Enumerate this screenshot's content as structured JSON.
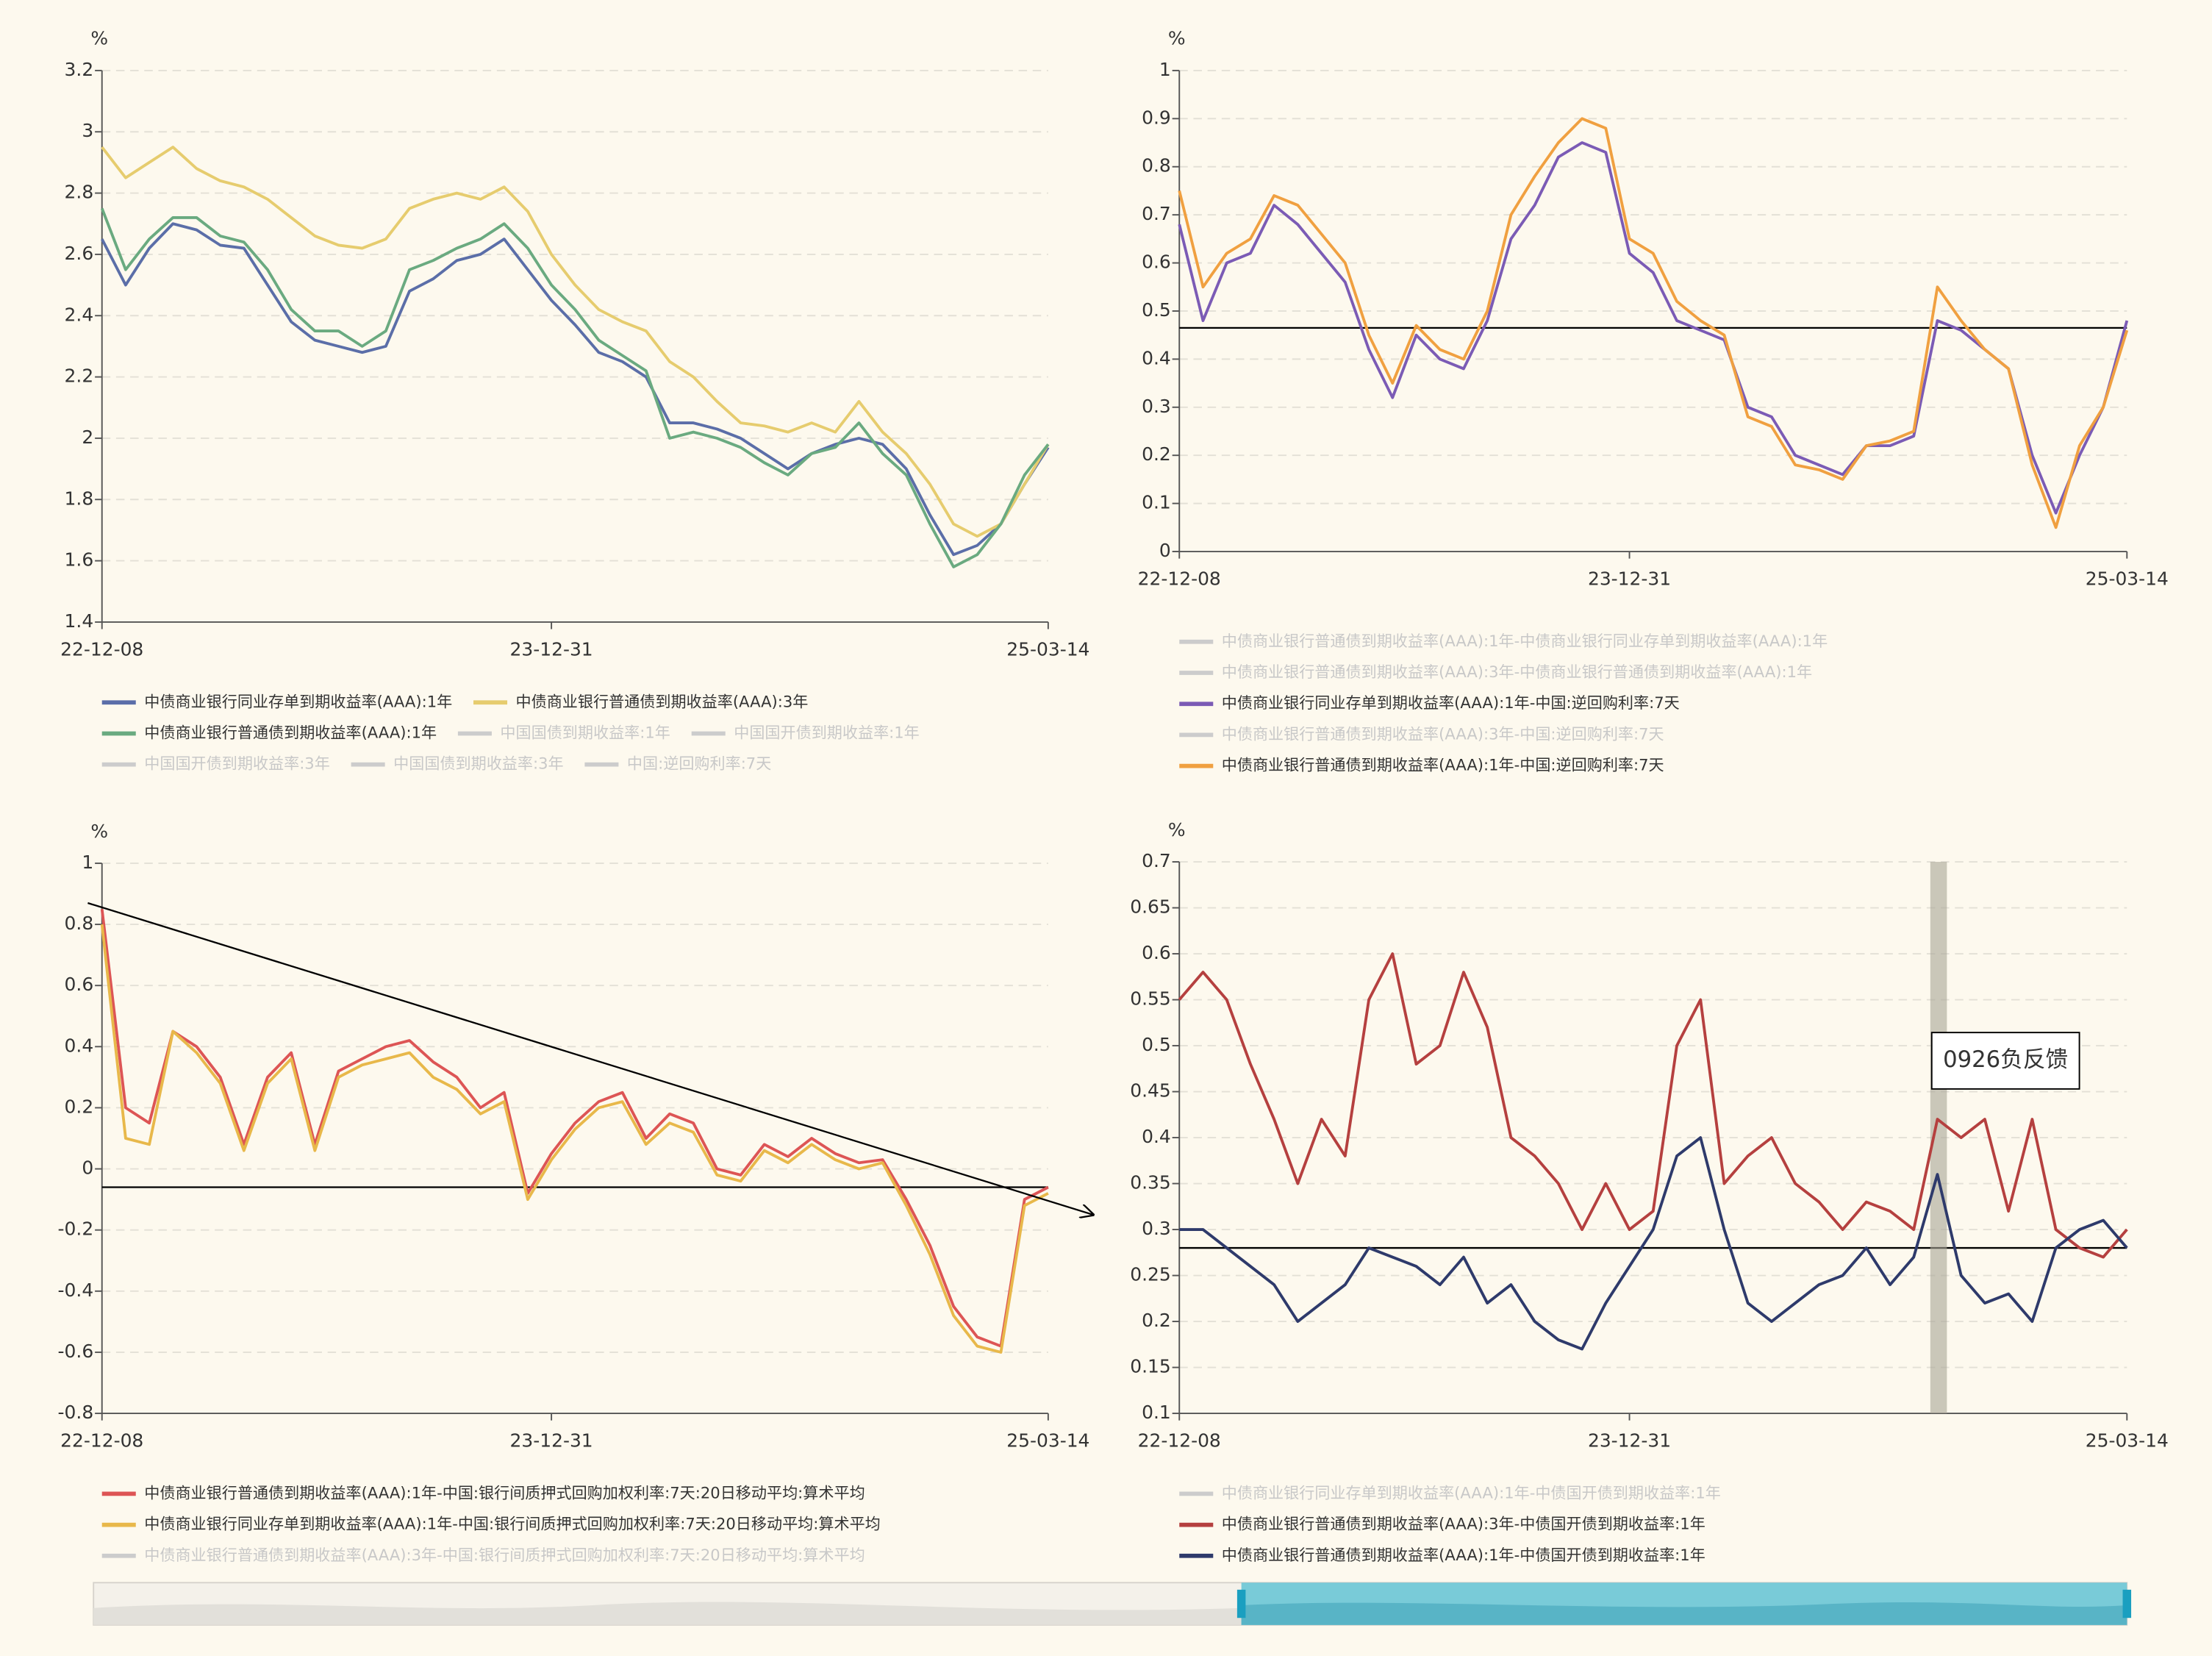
{
  "chart_data": [
    {
      "type": "line",
      "y_label": "%",
      "grid": true,
      "categories": [
        "22-12-08",
        null,
        null,
        null,
        null,
        null,
        null,
        null,
        null,
        null,
        null,
        null,
        null,
        null,
        null,
        null,
        null,
        null,
        null,
        "23-12-31",
        null,
        null,
        null,
        null,
        null,
        null,
        null,
        null,
        null,
        null,
        null,
        null,
        null,
        null,
        null,
        null,
        null,
        null,
        null,
        null,
        "25-03-14"
      ],
      "ylim": [
        1.4,
        3.2
      ],
      "yticks": [
        1.4,
        1.6,
        1.8,
        2,
        2.2,
        2.4,
        2.6,
        2.8,
        3,
        3.2
      ],
      "series": [
        {
          "name": "中债商业银行同业存单到期收益率(AAA):1年",
          "color": "#5b6ea8",
          "values": [
            2.65,
            2.5,
            2.62,
            2.7,
            2.68,
            2.63,
            2.62,
            2.5,
            2.38,
            2.32,
            2.3,
            2.28,
            2.3,
            2.48,
            2.52,
            2.58,
            2.6,
            2.65,
            2.55,
            2.45,
            2.37,
            2.28,
            2.25,
            2.2,
            2.05,
            2.05,
            2.03,
            2.0,
            1.95,
            1.9,
            1.95,
            1.98,
            2.0,
            1.98,
            1.9,
            1.75,
            1.62,
            1.65,
            1.72,
            1.85,
            1.97
          ]
        },
        {
          "name": "中债商业银行普通债到期收益率(AAA):3年",
          "color": "#e6cc6e",
          "values": [
            2.95,
            2.85,
            2.9,
            2.95,
            2.88,
            2.84,
            2.82,
            2.78,
            2.72,
            2.66,
            2.63,
            2.62,
            2.65,
            2.75,
            2.78,
            2.8,
            2.78,
            2.82,
            2.74,
            2.6,
            2.5,
            2.42,
            2.38,
            2.35,
            2.25,
            2.2,
            2.12,
            2.05,
            2.04,
            2.02,
            2.05,
            2.02,
            2.12,
            2.02,
            1.95,
            1.85,
            1.72,
            1.68,
            1.72,
            1.85,
            1.98
          ]
        },
        {
          "name": "中债商业银行普通债到期收益率(AAA):1年",
          "color": "#6aaa80",
          "values": [
            2.75,
            2.55,
            2.65,
            2.72,
            2.72,
            2.66,
            2.64,
            2.55,
            2.42,
            2.35,
            2.35,
            2.3,
            2.35,
            2.55,
            2.58,
            2.62,
            2.65,
            2.7,
            2.62,
            2.5,
            2.42,
            2.32,
            2.27,
            2.22,
            2.0,
            2.02,
            2.0,
            1.97,
            1.92,
            1.88,
            1.95,
            1.97,
            2.05,
            1.95,
            1.88,
            1.72,
            1.58,
            1.62,
            1.72,
            1.88,
            1.98
          ]
        },
        {
          "name": "中国国债到期收益率:1年",
          "color": "#cccccc",
          "visible": false
        },
        {
          "name": "中国国开债到期收益率:1年",
          "color": "#cccccc",
          "visible": false
        },
        {
          "name": "中国国开债到期收益率:3年",
          "color": "#cccccc",
          "visible": false
        },
        {
          "name": "中国国债到期收益率:3年",
          "color": "#cccccc",
          "visible": false
        },
        {
          "name": "中国:逆回购利率:7天",
          "color": "#cccccc",
          "visible": false
        }
      ]
    },
    {
      "type": "line",
      "y_label": "%",
      "grid": true,
      "categories": [
        "22-12-08",
        null,
        null,
        null,
        null,
        null,
        null,
        null,
        null,
        null,
        null,
        null,
        null,
        null,
        null,
        null,
        null,
        null,
        null,
        "23-12-31",
        null,
        null,
        null,
        null,
        null,
        null,
        null,
        null,
        null,
        null,
        null,
        null,
        null,
        null,
        null,
        null,
        null,
        null,
        null,
        null,
        "25-03-14"
      ],
      "ylim": [
        0,
        1
      ],
      "yticks": [
        0,
        0.1,
        0.2,
        0.3,
        0.4,
        0.5,
        0.6,
        0.7,
        0.8,
        0.9,
        1
      ],
      "reference_lines": [
        0.465
      ],
      "series": [
        {
          "name": "中债商业银行普通债到期收益率(AAA):1年-中债商业银行同业存单到期收益率(AAA):1年",
          "color": "#cccccc",
          "visible": false
        },
        {
          "name": "中债商业银行普通债到期收益率(AAA):3年-中债商业银行普通债到期收益率(AAA):1年",
          "color": "#cccccc",
          "visible": false
        },
        {
          "name": "中债商业银行同业存单到期收益率(AAA):1年-中国:逆回购利率:7天",
          "color": "#7b5bb5",
          "values": [
            0.68,
            0.48,
            0.6,
            0.62,
            0.72,
            0.68,
            0.62,
            0.56,
            0.42,
            0.32,
            0.45,
            0.4,
            0.38,
            0.48,
            0.65,
            0.72,
            0.82,
            0.85,
            0.83,
            0.62,
            0.58,
            0.48,
            0.46,
            0.44,
            0.3,
            0.28,
            0.2,
            0.18,
            0.16,
            0.22,
            0.22,
            0.24,
            0.48,
            0.46,
            0.42,
            0.38,
            0.2,
            0.08,
            0.2,
            0.3,
            0.48
          ]
        },
        {
          "name": "中债商业银行普通债到期收益率(AAA):3年-中国:逆回购利率:7天",
          "color": "#cccccc",
          "visible": false
        },
        {
          "name": "中债商业银行普通债到期收益率(AAA):1年-中国:逆回购利率:7天",
          "color": "#f0a040",
          "values": [
            0.75,
            0.55,
            0.62,
            0.65,
            0.74,
            0.72,
            0.66,
            0.6,
            0.45,
            0.35,
            0.47,
            0.42,
            0.4,
            0.5,
            0.7,
            0.78,
            0.85,
            0.9,
            0.88,
            0.65,
            0.62,
            0.52,
            0.48,
            0.45,
            0.28,
            0.26,
            0.18,
            0.17,
            0.15,
            0.22,
            0.23,
            0.25,
            0.55,
            0.48,
            0.42,
            0.38,
            0.18,
            0.05,
            0.22,
            0.3,
            0.46
          ]
        }
      ]
    },
    {
      "type": "line",
      "y_label": "%",
      "grid": true,
      "categories": [
        "22-12-08",
        null,
        null,
        null,
        null,
        null,
        null,
        null,
        null,
        null,
        null,
        null,
        null,
        null,
        null,
        null,
        null,
        null,
        null,
        "23-12-31",
        null,
        null,
        null,
        null,
        null,
        null,
        null,
        null,
        null,
        null,
        null,
        null,
        null,
        null,
        null,
        null,
        null,
        null,
        null,
        null,
        "25-03-14"
      ],
      "ylim": [
        -0.8,
        1
      ],
      "yticks": [
        -0.8,
        -0.6,
        -0.4,
        -0.2,
        0,
        0.2,
        0.4,
        0.6,
        0.8,
        1
      ],
      "reference_lines": [
        -0.06
      ],
      "trend_line": {
        "x": [
          -0.6,
          41.9
        ],
        "y": [
          0.87,
          -0.15
        ]
      },
      "series": [
        {
          "name": "中债商业银行普通债到期收益率(AAA):1年-中国:银行间质押式回购加权利率:7天:20日移动平均:算术平均",
          "color": "#dd5555",
          "values": [
            0.85,
            0.2,
            0.15,
            0.45,
            0.4,
            0.3,
            0.08,
            0.3,
            0.38,
            0.08,
            0.32,
            0.36,
            0.4,
            0.42,
            0.35,
            0.3,
            0.2,
            0.25,
            -0.08,
            0.05,
            0.15,
            0.22,
            0.25,
            0.1,
            0.18,
            0.15,
            0.0,
            -0.02,
            0.08,
            0.04,
            0.1,
            0.05,
            0.02,
            0.03,
            -0.1,
            -0.25,
            -0.45,
            -0.55,
            -0.58,
            -0.1,
            -0.06
          ]
        },
        {
          "name": "中债商业银行同业存单到期收益率(AAA):1年-中国:银行间质押式回购加权利率:7天:20日移动平均:算术平均",
          "color": "#e8b84a",
          "values": [
            0.8,
            0.1,
            0.08,
            0.45,
            0.38,
            0.28,
            0.06,
            0.28,
            0.36,
            0.06,
            0.3,
            0.34,
            0.36,
            0.38,
            0.3,
            0.26,
            0.18,
            0.22,
            -0.1,
            0.03,
            0.13,
            0.2,
            0.22,
            0.08,
            0.15,
            0.12,
            -0.02,
            -0.04,
            0.06,
            0.02,
            0.08,
            0.03,
            0.0,
            0.02,
            -0.12,
            -0.28,
            -0.48,
            -0.58,
            -0.6,
            -0.12,
            -0.08
          ]
        },
        {
          "name": "中债商业银行普通债到期收益率(AAA):3年-中国:银行间质押式回购加权利率:7天:20日移动平均:算术平均",
          "color": "#cccccc",
          "visible": false
        }
      ]
    },
    {
      "type": "line",
      "y_label": "%",
      "grid": true,
      "categories": [
        "22-12-08",
        null,
        null,
        null,
        null,
        null,
        null,
        null,
        null,
        null,
        null,
        null,
        null,
        null,
        null,
        null,
        null,
        null,
        null,
        "23-12-31",
        null,
        null,
        null,
        null,
        null,
        null,
        null,
        null,
        null,
        null,
        null,
        null,
        null,
        null,
        null,
        null,
        null,
        null,
        null,
        null,
        "25-03-14"
      ],
      "ylim": [
        0.1,
        0.7
      ],
      "yticks": [
        0.1,
        0.15,
        0.2,
        0.25,
        0.3,
        0.35,
        0.4,
        0.45,
        0.5,
        0.55,
        0.6,
        0.65,
        0.7
      ],
      "reference_lines": [
        0.28
      ],
      "highlight": {
        "x": [
          31.7,
          32.4
        ],
        "label": "0926负反馈"
      },
      "series": [
        {
          "name": "中债商业银行同业存单到期收益率(AAA):1年-中债国开债到期收益率:1年",
          "color": "#cccccc",
          "visible": false
        },
        {
          "name": "中债商业银行普通债到期收益率(AAA):3年-中债国开债到期收益率:1年",
          "color": "#b5403f",
          "values": [
            0.55,
            0.58,
            0.55,
            0.48,
            0.42,
            0.35,
            0.42,
            0.38,
            0.55,
            0.6,
            0.48,
            0.5,
            0.58,
            0.52,
            0.4,
            0.38,
            0.35,
            0.3,
            0.35,
            0.3,
            0.32,
            0.5,
            0.55,
            0.35,
            0.38,
            0.4,
            0.35,
            0.33,
            0.3,
            0.33,
            0.32,
            0.3,
            0.42,
            0.4,
            0.42,
            0.32,
            0.42,
            0.3,
            0.28,
            0.27,
            0.3
          ]
        },
        {
          "name": "中债商业银行普通债到期收益率(AAA):1年-中债国开债到期收益率:1年",
          "color": "#2e3a6b",
          "values": [
            0.3,
            0.3,
            0.28,
            0.26,
            0.24,
            0.2,
            0.22,
            0.24,
            0.28,
            0.27,
            0.26,
            0.24,
            0.27,
            0.22,
            0.24,
            0.2,
            0.18,
            0.17,
            0.22,
            0.26,
            0.3,
            0.38,
            0.4,
            0.3,
            0.22,
            0.2,
            0.22,
            0.24,
            0.25,
            0.28,
            0.24,
            0.27,
            0.36,
            0.25,
            0.22,
            0.23,
            0.2,
            0.28,
            0.3,
            0.31,
            0.28
          ]
        }
      ]
    }
  ]
}
